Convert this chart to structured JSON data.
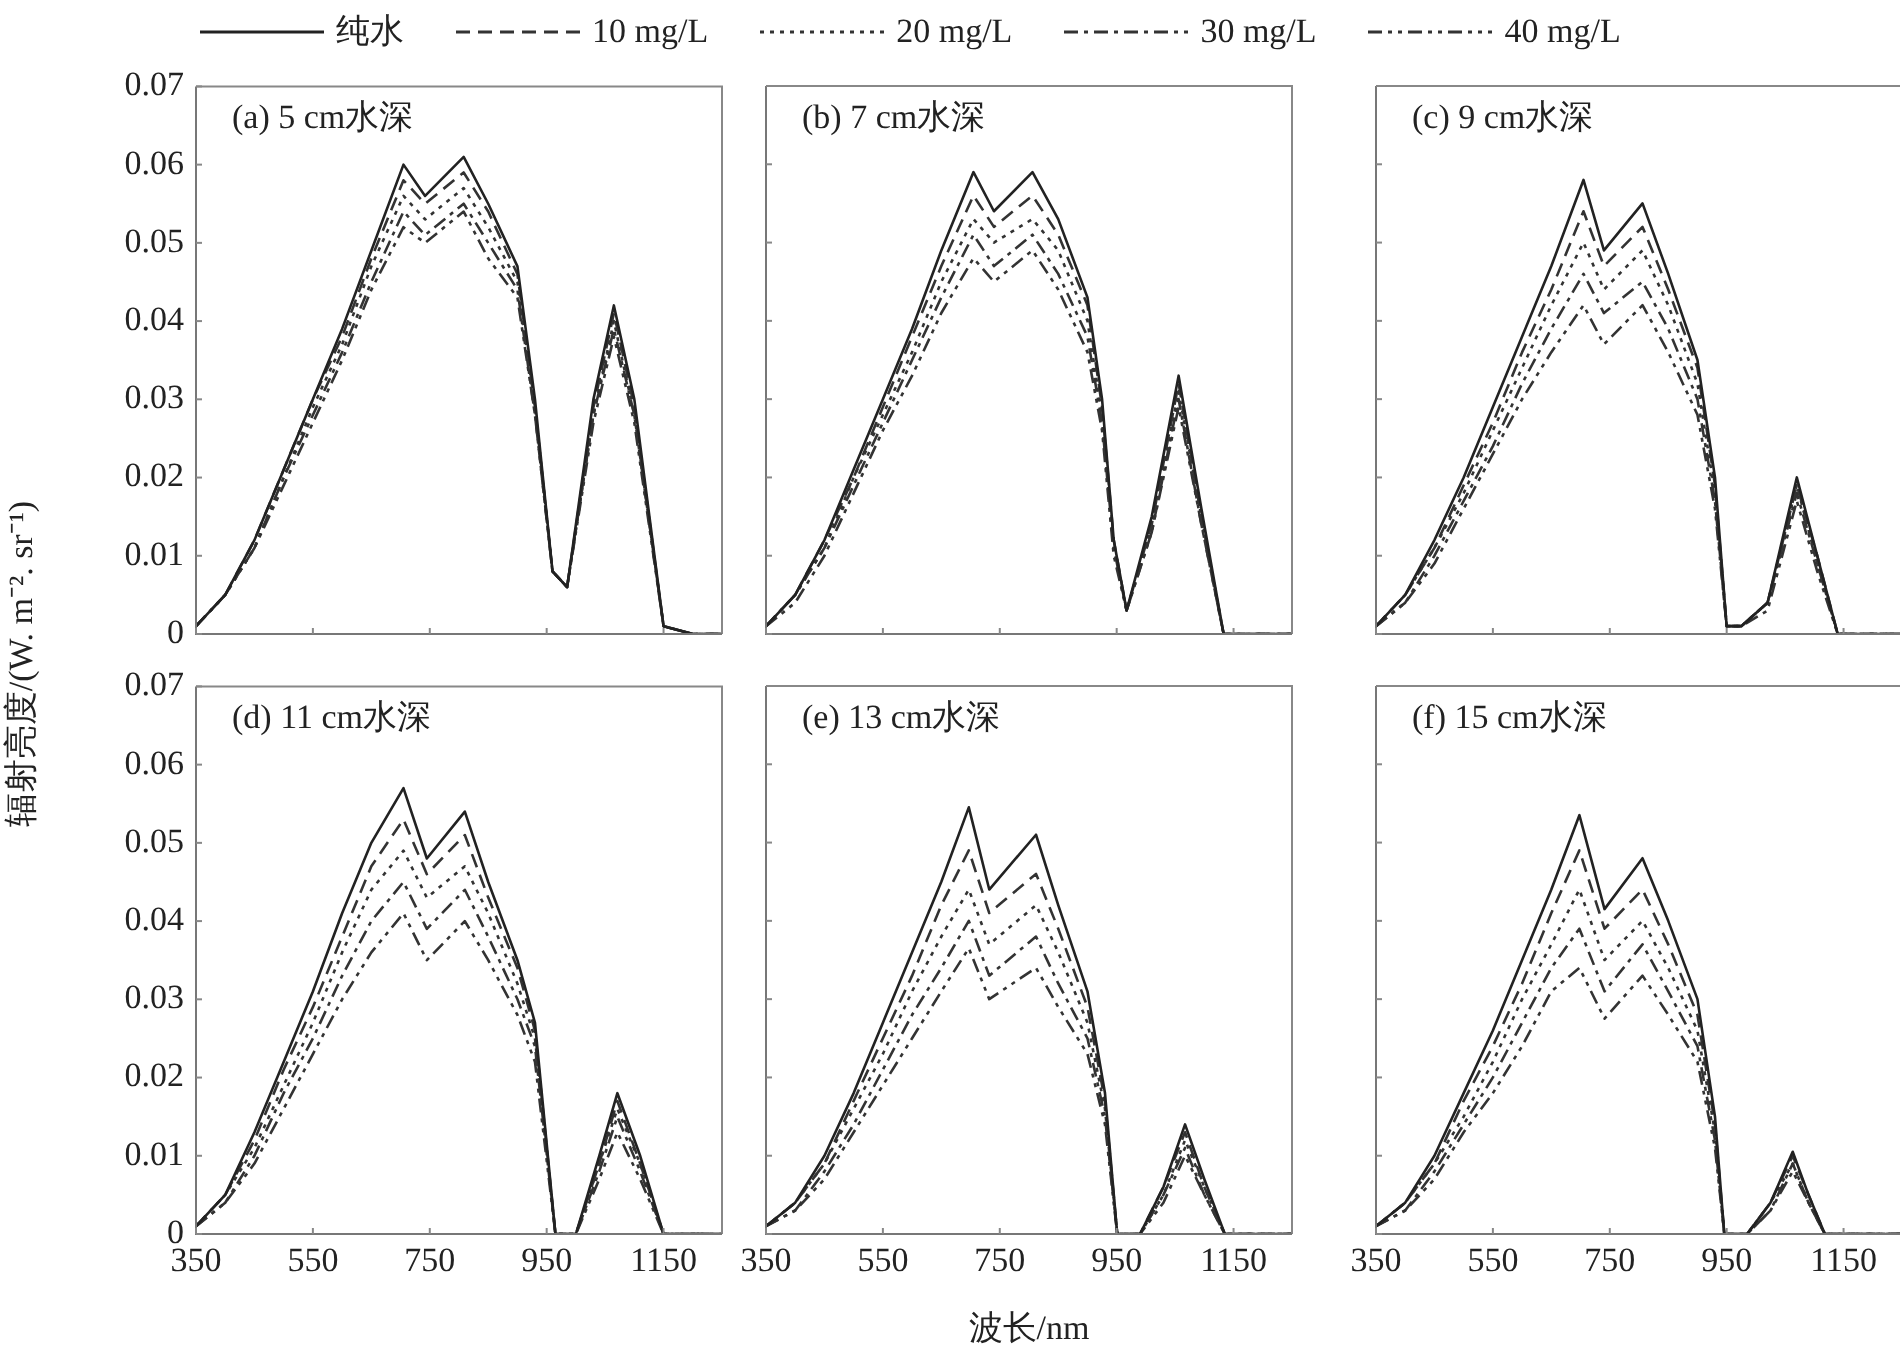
{
  "chart_data": [
    {
      "type": "line",
      "title": "(a) 5 cm水深",
      "ylabel": "辐射亮度/(W. m⁻². sr⁻¹)",
      "legend": "top",
      "tick_labels": "y",
      "grid": false,
      "marker": "none",
      "xlim": [
        350,
        1250
      ],
      "xticks": [
        350,
        550,
        750,
        950,
        1150
      ],
      "ylim": [
        0,
        0.07
      ],
      "yticks": [
        0,
        0.01,
        0.02,
        0.03,
        0.04,
        0.05,
        0.06,
        0.07
      ],
      "x": [
        350,
        400,
        450,
        500,
        550,
        600,
        650,
        705,
        742,
        808,
        850,
        900,
        930,
        960,
        985,
        1030,
        1065,
        1100,
        1150,
        1200,
        1250
      ],
      "series": [
        {
          "name": "纯水",
          "color": "#222222",
          "line_style": "solid",
          "values": [
            0.001,
            0.005,
            0.012,
            0.021,
            0.03,
            0.039,
            0.049,
            0.06,
            0.056,
            0.061,
            0.055,
            0.047,
            0.03,
            0.008,
            0.006,
            0.03,
            0.042,
            0.03,
            0.001,
            0,
            0
          ]
        },
        {
          "name": "10 mg/L",
          "color": "#333333",
          "line_style": "dashed",
          "values": [
            0.001,
            0.005,
            0.012,
            0.021,
            0.03,
            0.038,
            0.048,
            0.058,
            0.055,
            0.059,
            0.054,
            0.046,
            0.029,
            0.008,
            0.006,
            0.029,
            0.041,
            0.029,
            0.001,
            0,
            0
          ]
        },
        {
          "name": "20 mg/L",
          "color": "#333333",
          "line_style": "dotted",
          "values": [
            0.001,
            0.005,
            0.011,
            0.02,
            0.029,
            0.037,
            0.047,
            0.056,
            0.053,
            0.057,
            0.052,
            0.045,
            0.029,
            0.008,
            0.006,
            0.028,
            0.04,
            0.028,
            0.001,
            0,
            0
          ]
        },
        {
          "name": "30 mg/L",
          "color": "#333333",
          "line_style": "dashdot",
          "values": [
            0.001,
            0.005,
            0.011,
            0.02,
            0.028,
            0.036,
            0.045,
            0.054,
            0.051,
            0.055,
            0.05,
            0.044,
            0.028,
            0.008,
            0.006,
            0.028,
            0.039,
            0.028,
            0.001,
            0,
            0
          ]
        },
        {
          "name": "40 mg/L",
          "color": "#333333",
          "line_style": "dashdotdot",
          "values": [
            0.001,
            0.005,
            0.011,
            0.019,
            0.027,
            0.035,
            0.044,
            0.052,
            0.05,
            0.054,
            0.048,
            0.043,
            0.028,
            0.008,
            0.006,
            0.027,
            0.038,
            0.027,
            0.001,
            0,
            0
          ]
        }
      ]
    },
    {
      "type": "line",
      "title": "(b) 7 cm水深",
      "legend": "top",
      "tick_labels": false,
      "grid": false,
      "marker": "none",
      "xlim": [
        350,
        1250
      ],
      "xticks": [
        350,
        550,
        750,
        950,
        1150
      ],
      "ylim": [
        0,
        0.07
      ],
      "yticks": [
        0,
        0.01,
        0.02,
        0.03,
        0.04,
        0.05,
        0.06,
        0.07
      ],
      "x": [
        350,
        400,
        450,
        500,
        550,
        600,
        650,
        705,
        740,
        806,
        850,
        900,
        925,
        945,
        967,
        1010,
        1056,
        1095,
        1133,
        1200,
        1250
      ],
      "series": [
        {
          "name": "纯水",
          "color": "#222222",
          "line_style": "solid",
          "values": [
            0.001,
            0.005,
            0.012,
            0.021,
            0.03,
            0.039,
            0.049,
            0.059,
            0.054,
            0.059,
            0.053,
            0.043,
            0.03,
            0.012,
            0.003,
            0.015,
            0.033,
            0.016,
            0,
            0,
            0
          ]
        },
        {
          "name": "10 mg/L",
          "color": "#333333",
          "line_style": "dashed",
          "values": [
            0.001,
            0.005,
            0.012,
            0.02,
            0.029,
            0.038,
            0.047,
            0.056,
            0.052,
            0.056,
            0.051,
            0.042,
            0.029,
            0.012,
            0.003,
            0.014,
            0.032,
            0.015,
            0,
            0,
            0
          ]
        },
        {
          "name": "20 mg/L",
          "color": "#333333",
          "line_style": "dotted",
          "values": [
            0.001,
            0.005,
            0.011,
            0.02,
            0.028,
            0.036,
            0.045,
            0.053,
            0.05,
            0.053,
            0.049,
            0.04,
            0.028,
            0.011,
            0.003,
            0.014,
            0.031,
            0.015,
            0,
            0,
            0
          ]
        },
        {
          "name": "30 mg/L",
          "color": "#333333",
          "line_style": "dashdot",
          "values": [
            0.001,
            0.005,
            0.011,
            0.019,
            0.027,
            0.035,
            0.043,
            0.051,
            0.047,
            0.051,
            0.046,
            0.038,
            0.027,
            0.011,
            0.003,
            0.013,
            0.03,
            0.014,
            0,
            0,
            0
          ]
        },
        {
          "name": "40 mg/L",
          "color": "#333333",
          "line_style": "dashdotdot",
          "values": [
            0.001,
            0.004,
            0.01,
            0.018,
            0.026,
            0.033,
            0.041,
            0.048,
            0.045,
            0.049,
            0.044,
            0.036,
            0.026,
            0.01,
            0.003,
            0.013,
            0.029,
            0.014,
            0,
            0,
            0
          ]
        }
      ]
    },
    {
      "type": "line",
      "title": "(c) 9 cm水深",
      "legend": "top",
      "tick_labels": false,
      "grid": false,
      "marker": "none",
      "xlim": [
        350,
        1250
      ],
      "xticks": [
        350,
        550,
        750,
        950,
        1150
      ],
      "ylim": [
        0,
        0.07
      ],
      "yticks": [
        0,
        0.01,
        0.02,
        0.03,
        0.04,
        0.05,
        0.06,
        0.07
      ],
      "x": [
        350,
        400,
        450,
        500,
        550,
        600,
        650,
        705,
        740,
        806,
        850,
        900,
        930,
        950,
        975,
        1020,
        1070,
        1105,
        1140,
        1200,
        1250
      ],
      "series": [
        {
          "name": "纯水",
          "color": "#222222",
          "line_style": "solid",
          "values": [
            0.001,
            0.005,
            0.012,
            0.02,
            0.029,
            0.038,
            0.047,
            0.058,
            0.049,
            0.055,
            0.046,
            0.035,
            0.02,
            0.001,
            0.001,
            0.004,
            0.02,
            0.01,
            0,
            0,
            0
          ]
        },
        {
          "name": "10 mg/L",
          "color": "#333333",
          "line_style": "dashed",
          "values": [
            0.001,
            0.005,
            0.011,
            0.019,
            0.027,
            0.036,
            0.044,
            0.054,
            0.047,
            0.052,
            0.044,
            0.034,
            0.019,
            0.001,
            0.001,
            0.004,
            0.019,
            0.01,
            0,
            0,
            0
          ]
        },
        {
          "name": "20 mg/L",
          "color": "#333333",
          "line_style": "dotted",
          "values": [
            0.001,
            0.005,
            0.011,
            0.018,
            0.026,
            0.034,
            0.042,
            0.05,
            0.044,
            0.049,
            0.042,
            0.032,
            0.018,
            0.001,
            0.001,
            0.004,
            0.019,
            0.009,
            0,
            0,
            0
          ]
        },
        {
          "name": "30 mg/L",
          "color": "#333333",
          "line_style": "dashdot",
          "values": [
            0.001,
            0.004,
            0.01,
            0.017,
            0.024,
            0.032,
            0.039,
            0.046,
            0.041,
            0.045,
            0.039,
            0.03,
            0.017,
            0.001,
            0.001,
            0.004,
            0.018,
            0.009,
            0,
            0,
            0
          ]
        },
        {
          "name": "40 mg/L",
          "color": "#333333",
          "line_style": "dashdotdot",
          "values": [
            0.001,
            0.004,
            0.009,
            0.016,
            0.023,
            0.03,
            0.036,
            0.042,
            0.037,
            0.042,
            0.036,
            0.028,
            0.016,
            0.001,
            0.001,
            0.003,
            0.017,
            0.008,
            0,
            0,
            0
          ]
        }
      ]
    },
    {
      "type": "line",
      "title": "(d) 11 cm水深",
      "legend": "top",
      "grid": false,
      "marker": "none",
      "xlim": [
        350,
        1250
      ],
      "xticks": [
        350,
        550,
        750,
        950,
        1150
      ],
      "ylim": [
        0,
        0.07
      ],
      "yticks": [
        0,
        0.01,
        0.02,
        0.03,
        0.04,
        0.05,
        0.06,
        0.07
      ],
      "x": [
        350,
        400,
        450,
        500,
        550,
        600,
        650,
        705,
        745,
        810,
        850,
        900,
        930,
        965,
        1000,
        1040,
        1071,
        1110,
        1150,
        1200,
        1250
      ],
      "series": [
        {
          "name": "纯水",
          "color": "#222222",
          "line_style": "solid",
          "values": [
            0.001,
            0.005,
            0.013,
            0.022,
            0.031,
            0.041,
            0.05,
            0.057,
            0.048,
            0.054,
            0.045,
            0.035,
            0.027,
            0,
            0,
            0.01,
            0.018,
            0.01,
            0,
            0,
            0
          ]
        },
        {
          "name": "10 mg/L",
          "color": "#333333",
          "line_style": "dashed",
          "values": [
            0.001,
            0.005,
            0.012,
            0.021,
            0.029,
            0.038,
            0.047,
            0.053,
            0.046,
            0.051,
            0.043,
            0.034,
            0.026,
            0,
            0,
            0.009,
            0.017,
            0.009,
            0,
            0,
            0
          ]
        },
        {
          "name": "20 mg/L",
          "color": "#333333",
          "line_style": "dotted",
          "values": [
            0.001,
            0.005,
            0.011,
            0.019,
            0.027,
            0.036,
            0.044,
            0.049,
            0.043,
            0.047,
            0.041,
            0.032,
            0.025,
            0,
            0,
            0.009,
            0.016,
            0.009,
            0,
            0,
            0
          ]
        },
        {
          "name": "30 mg/L",
          "color": "#333333",
          "line_style": "dashdot",
          "values": [
            0.001,
            0.004,
            0.01,
            0.018,
            0.025,
            0.033,
            0.04,
            0.045,
            0.039,
            0.044,
            0.038,
            0.03,
            0.024,
            0,
            0,
            0.008,
            0.015,
            0.008,
            0,
            0,
            0
          ]
        },
        {
          "name": "40 mg/L",
          "color": "#333333",
          "line_style": "dashdotdot",
          "values": [
            0.001,
            0.004,
            0.009,
            0.016,
            0.023,
            0.03,
            0.036,
            0.041,
            0.035,
            0.04,
            0.035,
            0.028,
            0.022,
            0,
            0,
            0.007,
            0.013,
            0.007,
            0,
            0,
            0
          ]
        }
      ]
    },
    {
      "type": "line",
      "title": "(e) 13 cm水深",
      "xlabel": "波长/nm",
      "legend": "top",
      "tick_labels": "x",
      "grid": false,
      "marker": "none",
      "xlim": [
        350,
        1250
      ],
      "xticks": [
        350,
        550,
        750,
        950,
        1150
      ],
      "ylim": [
        0,
        0.07
      ],
      "yticks": [
        0,
        0.01,
        0.02,
        0.03,
        0.04,
        0.05,
        0.06,
        0.07
      ],
      "x": [
        350,
        400,
        450,
        500,
        550,
        600,
        650,
        697,
        732,
        812,
        850,
        900,
        930,
        951,
        990,
        1030,
        1067,
        1100,
        1135,
        1200,
        1250
      ],
      "series": [
        {
          "name": "纯水",
          "color": "#222222",
          "line_style": "solid",
          "values": [
            0.001,
            0.004,
            0.01,
            0.018,
            0.027,
            0.036,
            0.045,
            0.0545,
            0.044,
            0.051,
            0.042,
            0.031,
            0.018,
            0,
            0,
            0.006,
            0.014,
            0.007,
            0,
            0,
            0
          ]
        },
        {
          "name": "10 mg/L",
          "color": "#333333",
          "line_style": "dashed",
          "values": [
            0.001,
            0.004,
            0.009,
            0.017,
            0.025,
            0.033,
            0.042,
            0.049,
            0.041,
            0.046,
            0.039,
            0.029,
            0.017,
            0,
            0,
            0.006,
            0.013,
            0.006,
            0,
            0,
            0
          ]
        },
        {
          "name": "20 mg/L",
          "color": "#333333",
          "line_style": "dotted",
          "values": [
            0.001,
            0.004,
            0.009,
            0.016,
            0.023,
            0.031,
            0.038,
            0.044,
            0.037,
            0.042,
            0.036,
            0.027,
            0.016,
            0,
            0,
            0.005,
            0.012,
            0.006,
            0,
            0,
            0
          ]
        },
        {
          "name": "30 mg/L",
          "color": "#333333",
          "line_style": "dashdot",
          "values": [
            0.001,
            0.003,
            0.008,
            0.014,
            0.021,
            0.028,
            0.034,
            0.04,
            0.033,
            0.038,
            0.032,
            0.025,
            0.015,
            0,
            0,
            0.005,
            0.011,
            0.005,
            0,
            0,
            0
          ]
        },
        {
          "name": "40 mg/L",
          "color": "#333333",
          "line_style": "dashdotdot",
          "values": [
            0.001,
            0.003,
            0.007,
            0.013,
            0.019,
            0.025,
            0.031,
            0.0365,
            0.03,
            0.034,
            0.029,
            0.023,
            0.014,
            0,
            0,
            0.004,
            0.01,
            0.005,
            0,
            0,
            0
          ]
        }
      ]
    },
    {
      "type": "line",
      "title": "(f) 15 cm水深",
      "legend": "top",
      "tick_labels": "x",
      "grid": false,
      "marker": "none",
      "xlim": [
        350,
        1250
      ],
      "xticks": [
        350,
        550,
        750,
        950,
        1150
      ],
      "ylim": [
        0,
        0.07
      ],
      "yticks": [
        0,
        0.01,
        0.02,
        0.03,
        0.04,
        0.05,
        0.06,
        0.07
      ],
      "x": [
        350,
        400,
        450,
        500,
        550,
        600,
        650,
        698,
        741,
        806,
        850,
        900,
        930,
        946,
        985,
        1025,
        1063,
        1090,
        1118,
        1200,
        1250
      ],
      "series": [
        {
          "name": "纯水",
          "color": "#222222",
          "line_style": "solid",
          "values": [
            0.001,
            0.004,
            0.01,
            0.018,
            0.026,
            0.035,
            0.044,
            0.0535,
            0.0415,
            0.048,
            0.04,
            0.03,
            0.015,
            0,
            0,
            0.004,
            0.0105,
            0.005,
            0,
            0,
            0
          ]
        },
        {
          "name": "10 mg/L",
          "color": "#333333",
          "line_style": "dashed",
          "values": [
            0.001,
            0.004,
            0.009,
            0.017,
            0.024,
            0.032,
            0.041,
            0.049,
            0.039,
            0.044,
            0.037,
            0.028,
            0.014,
            0,
            0,
            0.004,
            0.01,
            0.005,
            0,
            0,
            0
          ]
        },
        {
          "name": "20 mg/L",
          "color": "#333333",
          "line_style": "dotted",
          "values": [
            0.001,
            0.004,
            0.009,
            0.015,
            0.022,
            0.03,
            0.037,
            0.044,
            0.035,
            0.04,
            0.034,
            0.026,
            0.013,
            0,
            0,
            0.004,
            0.009,
            0.004,
            0,
            0,
            0
          ]
        },
        {
          "name": "30 mg/L",
          "color": "#333333",
          "line_style": "dashdot",
          "values": [
            0.001,
            0.003,
            0.008,
            0.014,
            0.02,
            0.027,
            0.034,
            0.039,
            0.031,
            0.037,
            0.031,
            0.024,
            0.012,
            0,
            0,
            0.003,
            0.009,
            0.004,
            0,
            0,
            0
          ]
        },
        {
          "name": "40 mg/L",
          "color": "#333333",
          "line_style": "dashdotdot",
          "values": [
            0.001,
            0.003,
            0.007,
            0.013,
            0.018,
            0.024,
            0.031,
            0.034,
            0.0275,
            0.033,
            0.028,
            0.022,
            0.011,
            0,
            0,
            0.003,
            0.008,
            0.004,
            0,
            0,
            0
          ]
        }
      ]
    }
  ]
}
